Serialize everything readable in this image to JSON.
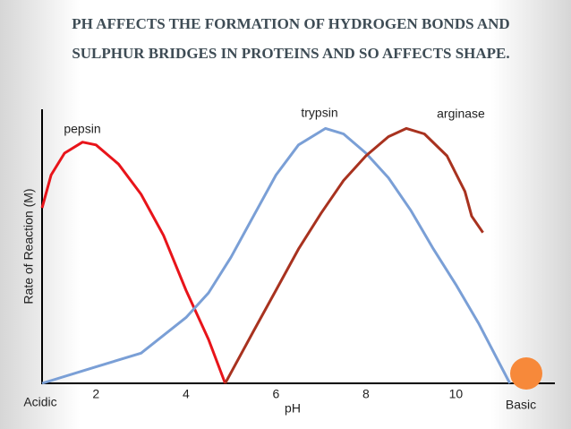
{
  "chart_data": {
    "type": "line",
    "title": "PH AFFECTS THE FORMATION OF HYDROGEN BONDS AND SULPHUR BRIDGES IN PROTEINS AND SO AFFECTS SHAPE.",
    "x_label": "pH",
    "y_label": "Rate of Reaction (M)",
    "x_left_label": "Acidic",
    "x_right_label": "Basic",
    "xlim": [
      0.8,
      12.2
    ],
    "xticks": [
      2,
      4,
      6,
      8,
      10
    ],
    "ylim": [
      0,
      10
    ],
    "series": [
      {
        "name": "pepsin",
        "color": "#e8141a",
        "x": [
          0.8,
          1.0,
          1.3,
          1.7,
          2.0,
          2.5,
          3.0,
          3.5,
          4.0,
          4.5,
          4.87
        ],
        "values": [
          6.4,
          7.6,
          8.4,
          8.8,
          8.7,
          8.0,
          6.9,
          5.4,
          3.4,
          1.6,
          0
        ]
      },
      {
        "name": "trypsin",
        "color": "#7a9fd6",
        "x": [
          0.8,
          2,
          3,
          4,
          4.5,
          5,
          5.5,
          6,
          6.5,
          7.1,
          7.5,
          8,
          8.5,
          9,
          9.5,
          10,
          10.5,
          11.2
        ],
        "values": [
          0,
          0.6,
          1.1,
          2.4,
          3.3,
          4.6,
          6.1,
          7.6,
          8.7,
          9.3,
          9.1,
          8.4,
          7.5,
          6.3,
          4.9,
          3.6,
          2.2,
          0
        ]
      },
      {
        "name": "arginase",
        "color": "#a8321f",
        "x": [
          4.87,
          5.5,
          6,
          6.5,
          7,
          7.5,
          8,
          8.5,
          8.9,
          9.3,
          9.8,
          10.2,
          10.35,
          10.6
        ],
        "values": [
          0,
          1.9,
          3.4,
          4.9,
          6.2,
          7.4,
          8.3,
          9.0,
          9.3,
          9.1,
          8.3,
          7.0,
          6.1,
          5.5
        ]
      }
    ]
  }
}
